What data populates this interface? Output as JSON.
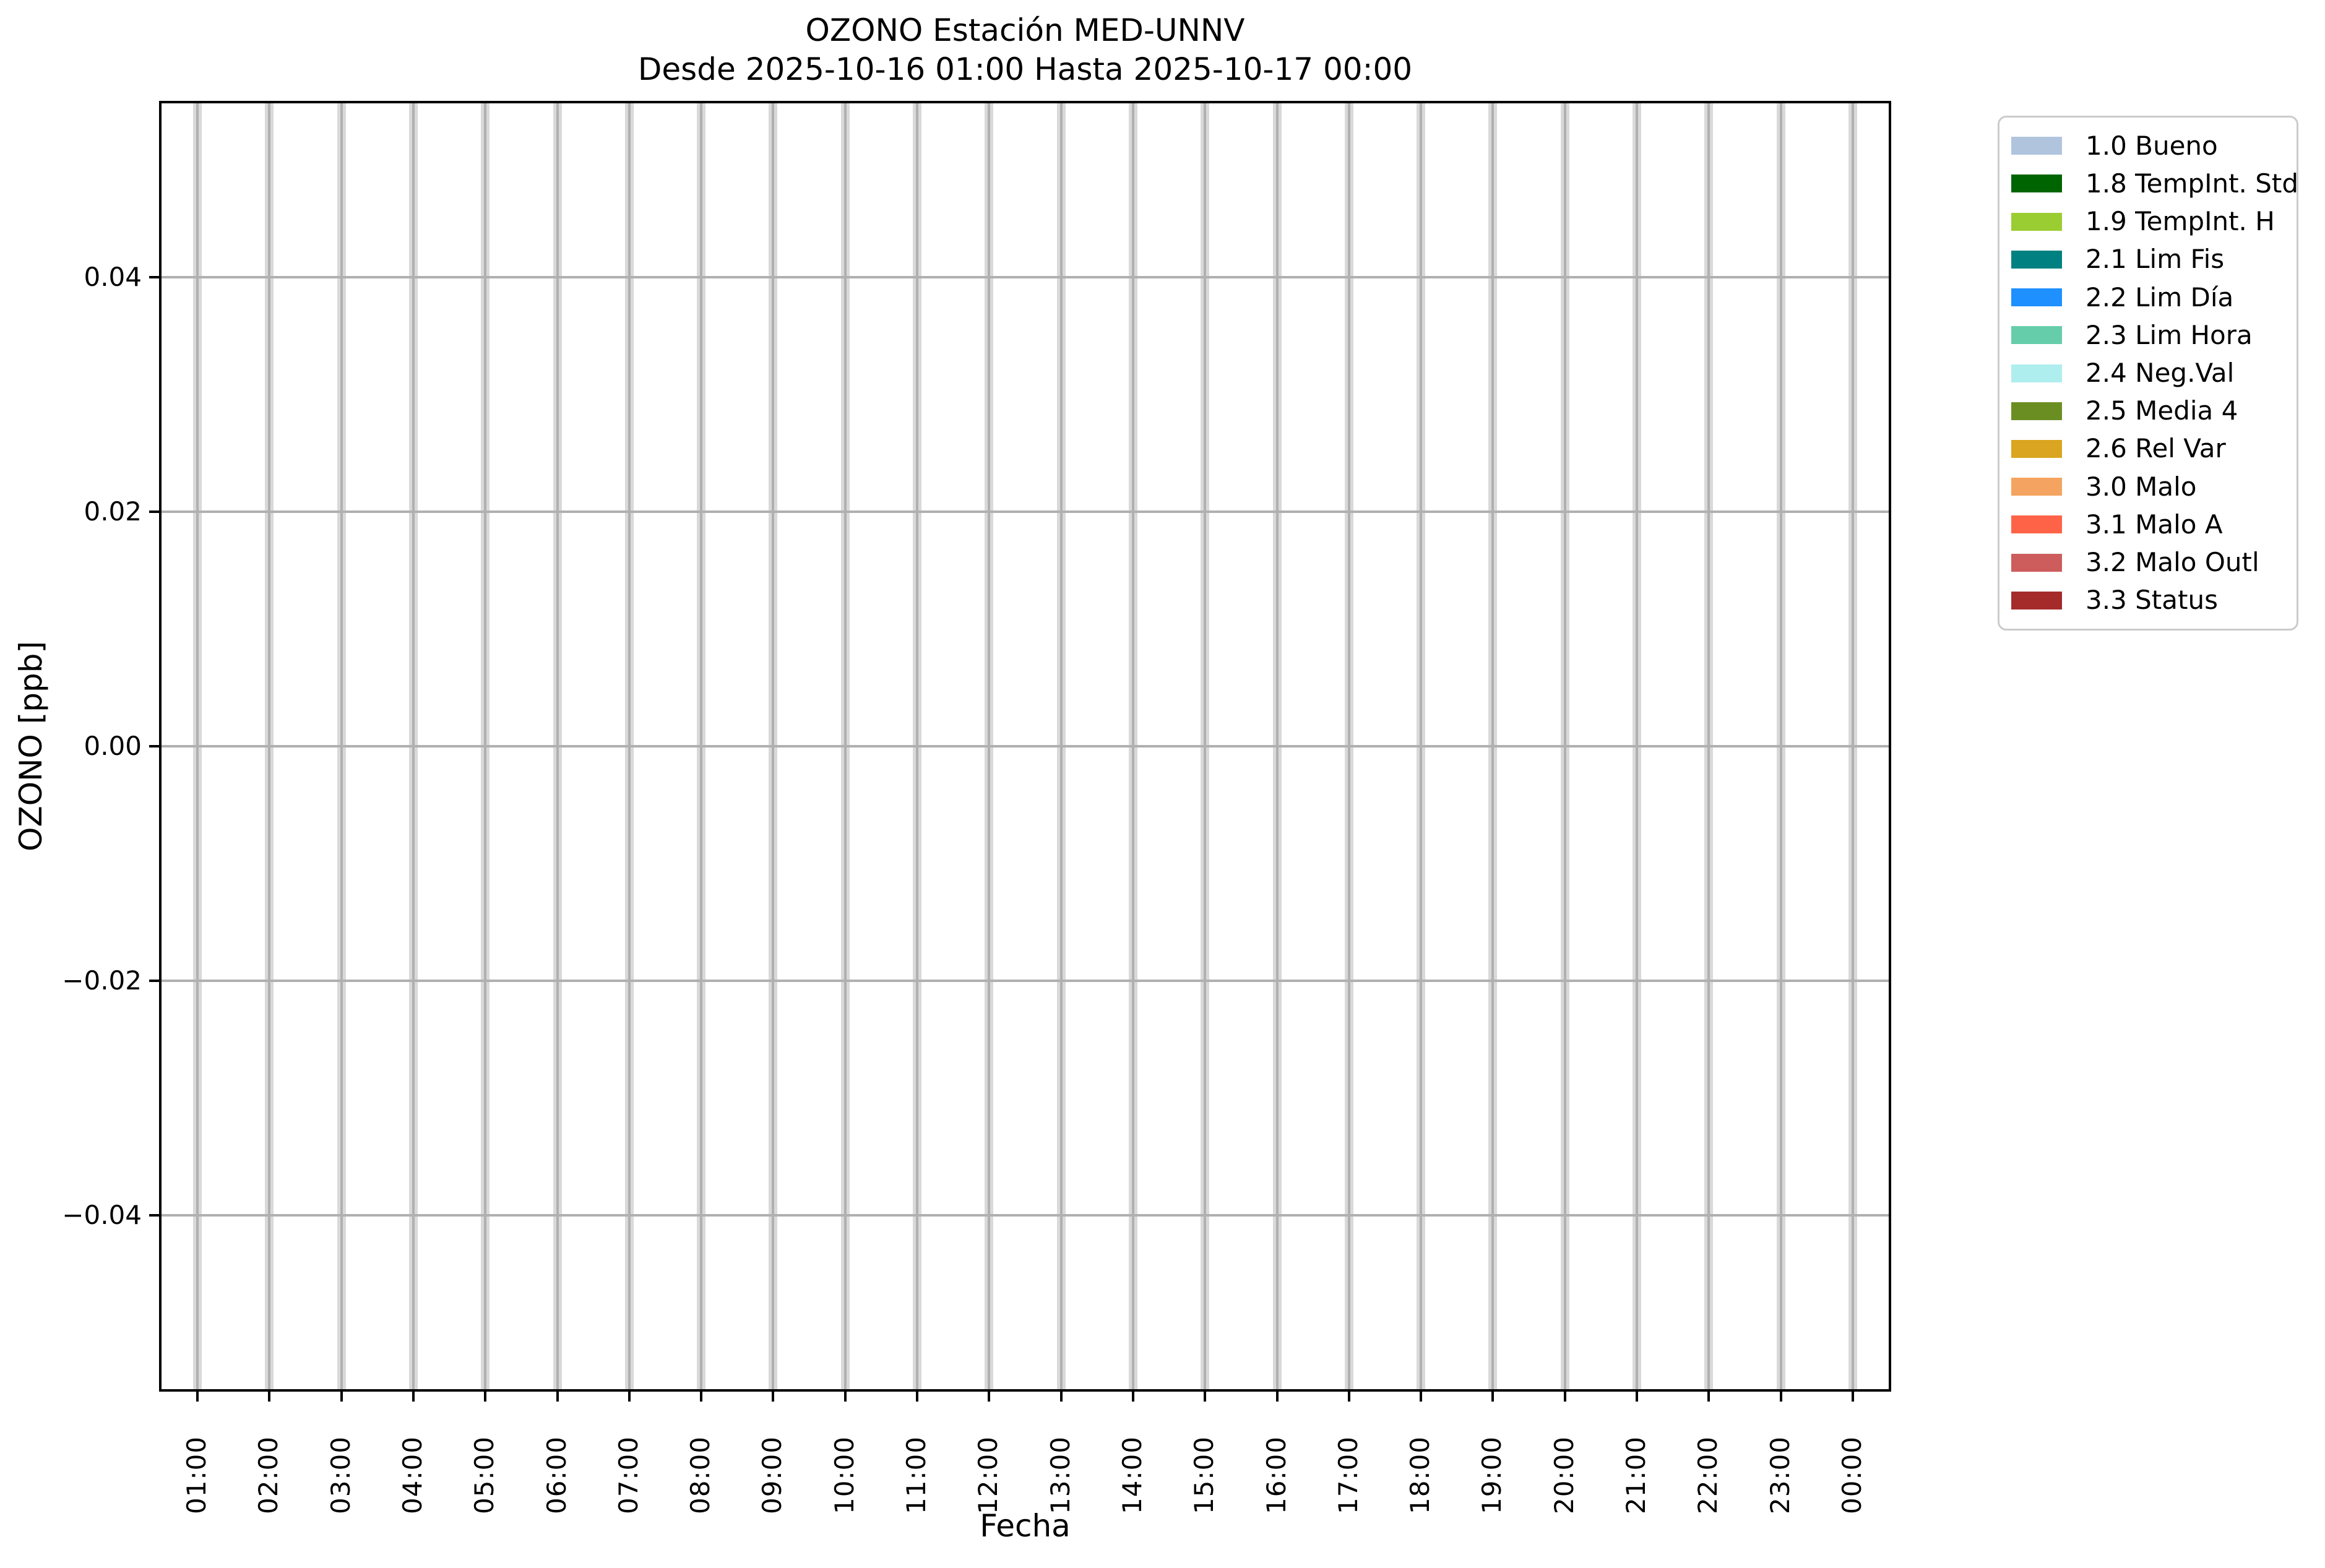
{
  "chart_data": {
    "type": "bar",
    "title": "OZONO Estación MED-UNNV",
    "subtitle": "Desde 2025-10-16 01:00 Hasta 2025-10-17 00:00",
    "xlabel": "Fecha",
    "ylabel": "OZONO [ppb]",
    "categories": [
      "01:00",
      "02:00",
      "03:00",
      "04:00",
      "05:00",
      "06:00",
      "07:00",
      "08:00",
      "09:00",
      "10:00",
      "11:00",
      "12:00",
      "13:00",
      "14:00",
      "15:00",
      "16:00",
      "17:00",
      "18:00",
      "19:00",
      "20:00",
      "21:00",
      "22:00",
      "23:00",
      "00:00"
    ],
    "series": [
      {
        "name": "hourly-status-bars",
        "color": "#d9d9d9",
        "note": "All 24 bars are gray and span the full visible y-range; no finite ozone concentration values are rendered",
        "values": [
          "full-span",
          "full-span",
          "full-span",
          "full-span",
          "full-span",
          "full-span",
          "full-span",
          "full-span",
          "full-span",
          "full-span",
          "full-span",
          "full-span",
          "full-span",
          "full-span",
          "full-span",
          "full-span",
          "full-span",
          "full-span",
          "full-span",
          "full-span",
          "full-span",
          "full-span",
          "full-span",
          "full-span"
        ]
      }
    ],
    "y_ticks": [
      0.04,
      0.02,
      0.0,
      -0.02,
      -0.04
    ],
    "y_tick_labels": [
      "0.04",
      "0.02",
      "0.00",
      "−0.02",
      "−0.04"
    ],
    "ylim": [
      -0.0548,
      0.0548
    ],
    "grid": true,
    "grid_color": "#b0b0b0",
    "axis_color": "#000000",
    "background_color": "#ffffff",
    "x_tick_rotation_deg": 90,
    "legend": {
      "position": "outside-upper-right",
      "border_color": "#cbcbcb",
      "entries": [
        {
          "label": "1.0 Bueno",
          "color": "#b0c4de"
        },
        {
          "label": "1.8 TempInt. Std",
          "color": "#006400"
        },
        {
          "label": "1.9 TempInt. H",
          "color": "#9acd32"
        },
        {
          "label": "2.1 Lim Fis",
          "color": "#008080"
        },
        {
          "label": "2.2 Lim Día",
          "color": "#1e90ff"
        },
        {
          "label": "2.3 Lim Hora",
          "color": "#66cdaa"
        },
        {
          "label": "2.4 Neg.Val",
          "color": "#afeeee"
        },
        {
          "label": "2.5 Media 4",
          "color": "#6b8e23"
        },
        {
          "label": "2.6 Rel Var",
          "color": "#daa520"
        },
        {
          "label": "3.0 Malo",
          "color": "#f4a460"
        },
        {
          "label": "3.1 Malo A",
          "color": "#ff6347"
        },
        {
          "label": "3.2 Malo Outl",
          "color": "#cd5c5c"
        },
        {
          "label": "3.3 Status",
          "color": "#a52a2a"
        }
      ]
    }
  }
}
